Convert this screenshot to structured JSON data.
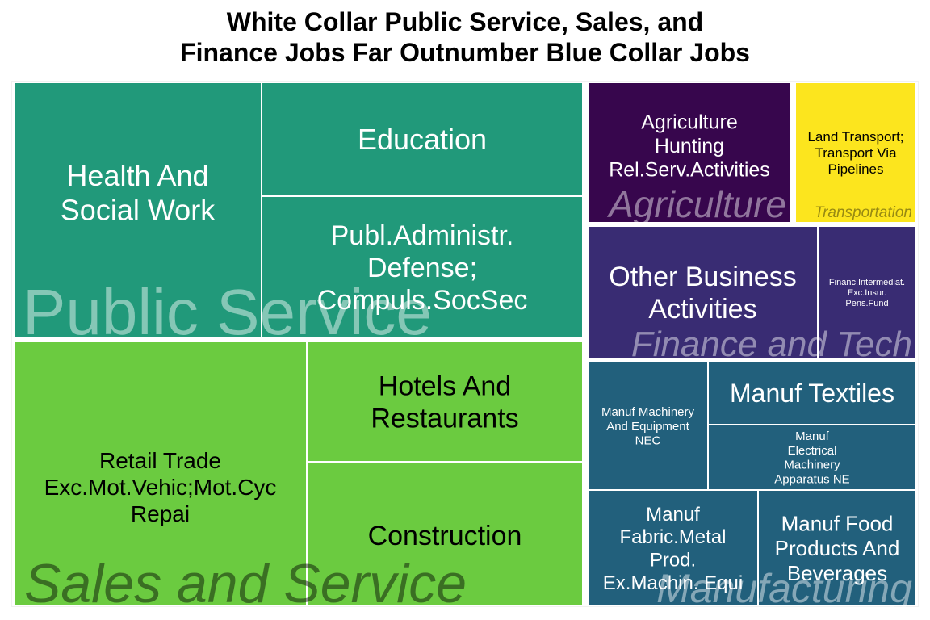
{
  "chart_data": {
    "type": "treemap",
    "title_lines": [
      "White Collar Public Service, Sales, and",
      "Finance Jobs Far Outnumber Blue Collar Jobs"
    ],
    "groups": [
      {
        "name": "Public Service",
        "color": "#21997A",
        "items": [
          {
            "label": "Health And\nSocial Work",
            "value": 21.5
          },
          {
            "label": "Education",
            "value": 14.0
          },
          {
            "label": "Publ.Administr.\nDefense;\nCompuls.SocSec",
            "value": 17.0
          }
        ]
      },
      {
        "name": "Sales and Service",
        "color": "#6BCB40",
        "items": [
          {
            "label": "Retail Trade\nExc.Mot.Vehic;Mot.Cyc\nRepai",
            "value": 29.0
          },
          {
            "label": "Hotels And\nRestaurants",
            "value": 12.5
          },
          {
            "label": "Construction",
            "value": 15.0
          }
        ]
      },
      {
        "name": "Agriculture",
        "color": "#37064D",
        "items": [
          {
            "label": "Agriculture\nHunting\nRel.Serv.Activities",
            "value": 7.5
          }
        ]
      },
      {
        "name": "Transportation",
        "color": "#FCE51E",
        "items": [
          {
            "label": "Land Transport;\nTransport Via\nPipelines",
            "value": 4.5
          }
        ]
      },
      {
        "name": "Finance and Tech",
        "color": "#392C73",
        "items": [
          {
            "label": "Other Business\nActivities",
            "value": 8.5
          },
          {
            "label": "Financ.Intermediat.\nExc.Insur.\nPens.Fund",
            "value": 3.5
          }
        ]
      },
      {
        "name": "Manufacturing",
        "color": "#22607C",
        "items": [
          {
            "label": "Manuf Machinery\nAnd Equipment\nNEC",
            "value": 4.5
          },
          {
            "label": "Manuf Textiles",
            "value": 4.4
          },
          {
            "label": "Manuf\nElectrical\nMachinery\nApparatus NE",
            "value": 4.8
          },
          {
            "label": "Manuf\nFabric.Metal\nProd.\nEx.Machin. Equi",
            "value": 6.3
          },
          {
            "label": "Manuf Food\nProducts And\nBeverages",
            "value": 6.0
          }
        ]
      }
    ],
    "legend": "none"
  }
}
